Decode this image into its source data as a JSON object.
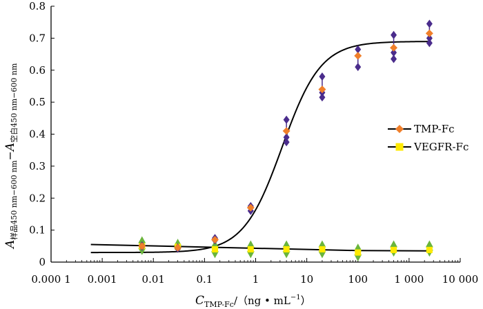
{
  "chart_data": {
    "type": "scatter",
    "title": "",
    "xscale": "log",
    "xlim": [
      0.0001,
      10000
    ],
    "ylim": [
      0,
      0.8
    ],
    "x_ticks": [
      0.0001,
      0.001,
      0.01,
      0.1,
      1,
      10,
      100,
      1000,
      10000
    ],
    "x_tick_labels": [
      "0.000 1",
      "0.001",
      "0.01",
      "0.1",
      "1",
      "10",
      "100",
      "1 000",
      "10 000"
    ],
    "y_ticks": [
      0,
      0.1,
      0.2,
      0.3,
      0.4,
      0.5,
      0.6,
      0.7,
      0.8
    ],
    "y_tick_labels": [
      "0",
      "0.1",
      "0.2",
      "0.3",
      "0.4",
      "0.5",
      "0.6",
      "0.7",
      "0.8"
    ],
    "xlabel": {
      "main": "C",
      "sub": "TMP-Fc",
      "rest": "/（ng • mL",
      "sup": "−1",
      "close": "）"
    },
    "ylabel": {
      "main": "A",
      "sub1": "样品450 nm−600 nm",
      "minus": "−",
      "main2": "A",
      "sub2": "空白450 nm−600 nm"
    },
    "legend": {
      "position": "right",
      "entries": [
        {
          "label": "TMP-Fc",
          "color": "#f07f2a",
          "marker": "diamond"
        },
        {
          "label": "VEGFR-Fc",
          "color": "#ffea00",
          "marker": "square"
        }
      ]
    },
    "series": [
      {
        "name": "TMP-Fc",
        "mean_color": "#f07f2a",
        "replicate_color": "#4a2c8c",
        "x": [
          0.006,
          0.03,
          0.16,
          0.8,
          4,
          20,
          100,
          500,
          2500
        ],
        "mean": [
          0.05,
          0.045,
          0.07,
          0.17,
          0.41,
          0.54,
          0.645,
          0.67,
          0.715
        ],
        "replicates": [
          [
            0.048,
            0.052
          ],
          [
            0.042,
            0.046
          ],
          [
            0.068,
            0.075
          ],
          [
            0.16,
            0.175
          ],
          [
            0.375,
            0.39,
            0.445
          ],
          [
            0.515,
            0.53,
            0.58
          ],
          [
            0.61,
            0.645,
            0.665
          ],
          [
            0.635,
            0.655,
            0.71
          ],
          [
            0.685,
            0.7,
            0.745
          ]
        ],
        "fit_curve": {
          "bottom": 0.03,
          "top": 0.69,
          "ec50": 3.3,
          "hill": 1.15
        }
      },
      {
        "name": "VEGFR-Fc",
        "mean_color": "#ffea00",
        "replicate_color": "#6ab53c",
        "x": [
          0.006,
          0.03,
          0.16,
          0.8,
          4,
          20,
          100,
          500,
          2500
        ],
        "mean": [
          0.05,
          0.048,
          0.04,
          0.04,
          0.04,
          0.04,
          0.03,
          0.038,
          0.038
        ],
        "replicates": [
          [
            0.035,
            0.068
          ],
          [
            0.042,
            0.06
          ],
          [
            0.025,
            0.055
          ],
          [
            0.025,
            0.055
          ],
          [
            0.025,
            0.055
          ],
          [
            0.025,
            0.055
          ],
          [
            0.015,
            0.045
          ],
          [
            0.03,
            0.055
          ],
          [
            0.03,
            0.055
          ]
        ],
        "fit_curve": {
          "type": "linear-log",
          "y_at_x0": 0.055,
          "x0": 0.0006,
          "y_at_x1": 0.035,
          "x1": 2500
        }
      }
    ]
  }
}
